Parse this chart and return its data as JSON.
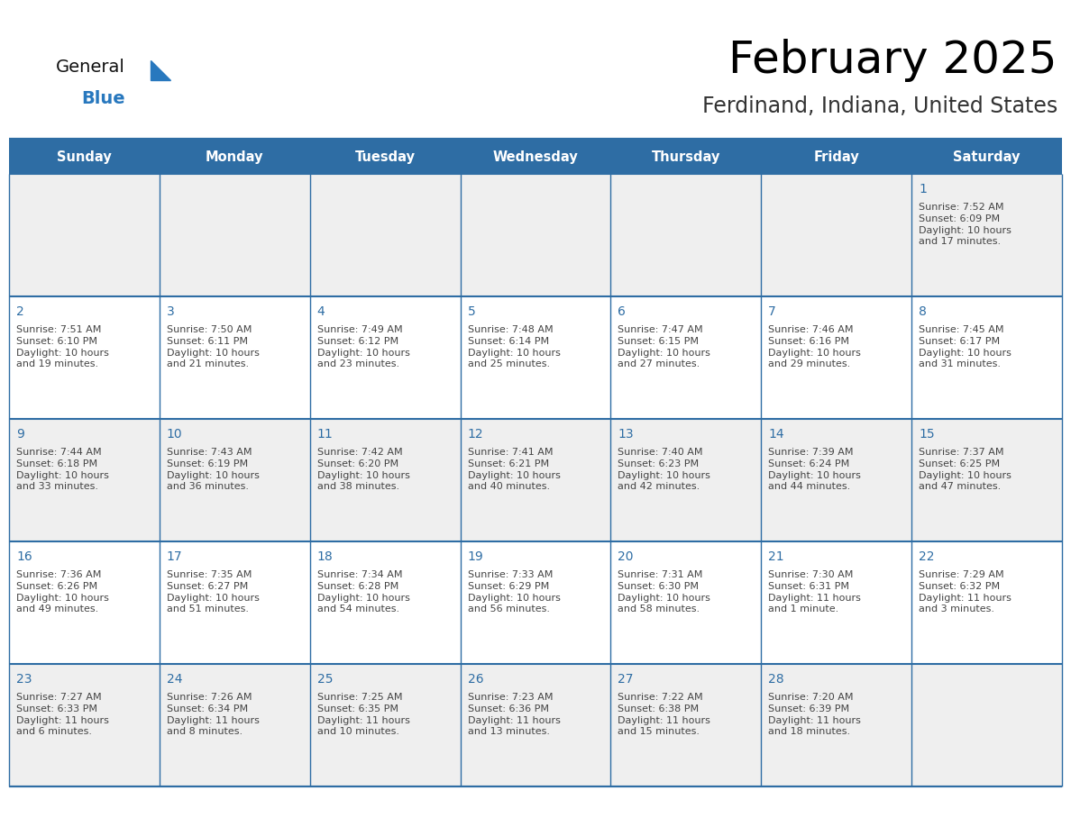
{
  "title": "February 2025",
  "subtitle": "Ferdinand, Indiana, United States",
  "header_bg": "#2E6DA4",
  "header_text_color": "#FFFFFF",
  "cell_bg_light": "#EFEFEF",
  "cell_bg_white": "#FFFFFF",
  "day_number_color": "#2E6DA4",
  "info_text_color": "#444444",
  "border_color": "#2E6DA4",
  "days_of_week": [
    "Sunday",
    "Monday",
    "Tuesday",
    "Wednesday",
    "Thursday",
    "Friday",
    "Saturday"
  ],
  "logo_general_color": "#111111",
  "logo_blue_color": "#2878BE",
  "calendar_data": [
    [
      null,
      null,
      null,
      null,
      null,
      null,
      {
        "day": "1",
        "sunrise": "7:52 AM",
        "sunset": "6:09 PM",
        "daylight": "10 hours\nand 17 minutes."
      }
    ],
    [
      {
        "day": "2",
        "sunrise": "7:51 AM",
        "sunset": "6:10 PM",
        "daylight": "10 hours\nand 19 minutes."
      },
      {
        "day": "3",
        "sunrise": "7:50 AM",
        "sunset": "6:11 PM",
        "daylight": "10 hours\nand 21 minutes."
      },
      {
        "day": "4",
        "sunrise": "7:49 AM",
        "sunset": "6:12 PM",
        "daylight": "10 hours\nand 23 minutes."
      },
      {
        "day": "5",
        "sunrise": "7:48 AM",
        "sunset": "6:14 PM",
        "daylight": "10 hours\nand 25 minutes."
      },
      {
        "day": "6",
        "sunrise": "7:47 AM",
        "sunset": "6:15 PM",
        "daylight": "10 hours\nand 27 minutes."
      },
      {
        "day": "7",
        "sunrise": "7:46 AM",
        "sunset": "6:16 PM",
        "daylight": "10 hours\nand 29 minutes."
      },
      {
        "day": "8",
        "sunrise": "7:45 AM",
        "sunset": "6:17 PM",
        "daylight": "10 hours\nand 31 minutes."
      }
    ],
    [
      {
        "day": "9",
        "sunrise": "7:44 AM",
        "sunset": "6:18 PM",
        "daylight": "10 hours\nand 33 minutes."
      },
      {
        "day": "10",
        "sunrise": "7:43 AM",
        "sunset": "6:19 PM",
        "daylight": "10 hours\nand 36 minutes."
      },
      {
        "day": "11",
        "sunrise": "7:42 AM",
        "sunset": "6:20 PM",
        "daylight": "10 hours\nand 38 minutes."
      },
      {
        "day": "12",
        "sunrise": "7:41 AM",
        "sunset": "6:21 PM",
        "daylight": "10 hours\nand 40 minutes."
      },
      {
        "day": "13",
        "sunrise": "7:40 AM",
        "sunset": "6:23 PM",
        "daylight": "10 hours\nand 42 minutes."
      },
      {
        "day": "14",
        "sunrise": "7:39 AM",
        "sunset": "6:24 PM",
        "daylight": "10 hours\nand 44 minutes."
      },
      {
        "day": "15",
        "sunrise": "7:37 AM",
        "sunset": "6:25 PM",
        "daylight": "10 hours\nand 47 minutes."
      }
    ],
    [
      {
        "day": "16",
        "sunrise": "7:36 AM",
        "sunset": "6:26 PM",
        "daylight": "10 hours\nand 49 minutes."
      },
      {
        "day": "17",
        "sunrise": "7:35 AM",
        "sunset": "6:27 PM",
        "daylight": "10 hours\nand 51 minutes."
      },
      {
        "day": "18",
        "sunrise": "7:34 AM",
        "sunset": "6:28 PM",
        "daylight": "10 hours\nand 54 minutes."
      },
      {
        "day": "19",
        "sunrise": "7:33 AM",
        "sunset": "6:29 PM",
        "daylight": "10 hours\nand 56 minutes."
      },
      {
        "day": "20",
        "sunrise": "7:31 AM",
        "sunset": "6:30 PM",
        "daylight": "10 hours\nand 58 minutes."
      },
      {
        "day": "21",
        "sunrise": "7:30 AM",
        "sunset": "6:31 PM",
        "daylight": "11 hours\nand 1 minute."
      },
      {
        "day": "22",
        "sunrise": "7:29 AM",
        "sunset": "6:32 PM",
        "daylight": "11 hours\nand 3 minutes."
      }
    ],
    [
      {
        "day": "23",
        "sunrise": "7:27 AM",
        "sunset": "6:33 PM",
        "daylight": "11 hours\nand 6 minutes."
      },
      {
        "day": "24",
        "sunrise": "7:26 AM",
        "sunset": "6:34 PM",
        "daylight": "11 hours\nand 8 minutes."
      },
      {
        "day": "25",
        "sunrise": "7:25 AM",
        "sunset": "6:35 PM",
        "daylight": "11 hours\nand 10 minutes."
      },
      {
        "day": "26",
        "sunrise": "7:23 AM",
        "sunset": "6:36 PM",
        "daylight": "11 hours\nand 13 minutes."
      },
      {
        "day": "27",
        "sunrise": "7:22 AM",
        "sunset": "6:38 PM",
        "daylight": "11 hours\nand 15 minutes."
      },
      {
        "day": "28",
        "sunrise": "7:20 AM",
        "sunset": "6:39 PM",
        "daylight": "11 hours\nand 18 minutes."
      },
      null
    ]
  ]
}
